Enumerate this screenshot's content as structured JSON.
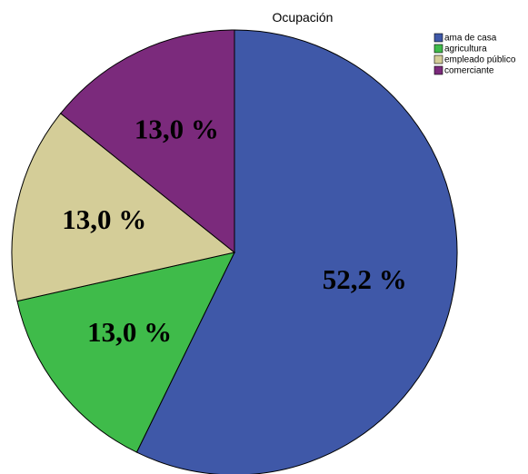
{
  "chart_data": {
    "type": "pie",
    "title": "Ocupación",
    "categories": [
      "ama de casa",
      "agricultura",
      "empleado público",
      "comerciante"
    ],
    "values": [
      52.2,
      13.0,
      13.0,
      13.0
    ],
    "value_labels": [
      "52,2 %",
      "13,0 %",
      "13,0 %",
      "13,0 %"
    ],
    "colors": [
      "#3f58a8",
      "#3fbb4a",
      "#d4cd98",
      "#7b2a7c"
    ],
    "legend": "top-right"
  }
}
